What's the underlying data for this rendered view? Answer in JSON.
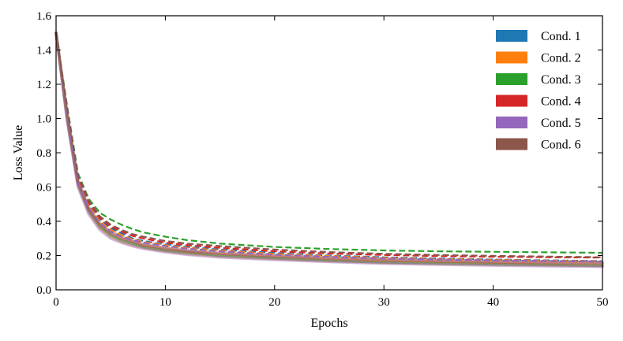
{
  "chart_data": {
    "type": "line",
    "title": "",
    "xlabel": "Epochs",
    "ylabel": "Loss Value",
    "xlim": [
      0,
      50
    ],
    "ylim": [
      0.0,
      1.6
    ],
    "xticks": [
      0,
      10,
      20,
      30,
      40,
      50
    ],
    "yticks": [
      0.0,
      0.2,
      0.4,
      0.6,
      0.8,
      1.0,
      1.2,
      1.4,
      1.6
    ],
    "xtick_labels": [
      "0",
      "10",
      "20",
      "30",
      "40",
      "50"
    ],
    "ytick_labels": [
      "0.0",
      "0.2",
      "0.4",
      "0.6",
      "0.8",
      "1.0",
      "1.2",
      "1.4",
      "1.6"
    ],
    "grid": false,
    "legend_position": "top-right",
    "x": [
      0,
      1,
      2,
      3,
      4,
      5,
      6,
      7,
      8,
      10,
      12,
      15,
      20,
      25,
      30,
      35,
      40,
      45,
      50
    ],
    "series": [
      {
        "name": "Cond. 1",
        "color": "#1f77b4",
        "solid": [
          1.5,
          1.02,
          0.62,
          0.46,
          0.37,
          0.32,
          0.29,
          0.27,
          0.25,
          0.23,
          0.22,
          0.2,
          0.185,
          0.17,
          0.16,
          0.155,
          0.15,
          0.145,
          0.14
        ],
        "dashed": [
          1.5,
          1.05,
          0.65,
          0.5,
          0.41,
          0.36,
          0.33,
          0.3,
          0.285,
          0.265,
          0.25,
          0.235,
          0.215,
          0.2,
          0.19,
          0.183,
          0.177,
          0.172,
          0.168
        ]
      },
      {
        "name": "Cond. 2",
        "color": "#ff7f0e",
        "solid": [
          1.5,
          1.0,
          0.61,
          0.45,
          0.36,
          0.31,
          0.28,
          0.26,
          0.245,
          0.225,
          0.21,
          0.195,
          0.18,
          0.168,
          0.158,
          0.152,
          0.147,
          0.143,
          0.14
        ],
        "dashed": [
          1.5,
          1.04,
          0.64,
          0.49,
          0.4,
          0.35,
          0.32,
          0.295,
          0.28,
          0.26,
          0.245,
          0.23,
          0.21,
          0.197,
          0.187,
          0.18,
          0.175,
          0.17,
          0.167
        ]
      },
      {
        "name": "Cond. 3",
        "color": "#2ca02c",
        "solid": [
          1.5,
          1.01,
          0.62,
          0.46,
          0.37,
          0.32,
          0.29,
          0.27,
          0.25,
          0.23,
          0.215,
          0.2,
          0.185,
          0.172,
          0.162,
          0.156,
          0.151,
          0.147,
          0.144
        ],
        "dashed": [
          1.5,
          1.08,
          0.68,
          0.53,
          0.45,
          0.41,
          0.38,
          0.355,
          0.335,
          0.31,
          0.29,
          0.27,
          0.25,
          0.238,
          0.23,
          0.225,
          0.222,
          0.219,
          0.216
        ]
      },
      {
        "name": "Cond. 4",
        "color": "#d62728",
        "solid": [
          1.5,
          1.03,
          0.63,
          0.47,
          0.38,
          0.33,
          0.3,
          0.28,
          0.26,
          0.24,
          0.225,
          0.21,
          0.195,
          0.182,
          0.172,
          0.166,
          0.161,
          0.157,
          0.154
        ],
        "dashed": [
          1.5,
          1.06,
          0.66,
          0.51,
          0.42,
          0.37,
          0.34,
          0.315,
          0.3,
          0.275,
          0.26,
          0.245,
          0.225,
          0.212,
          0.203,
          0.197,
          0.193,
          0.19,
          0.188
        ]
      },
      {
        "name": "Cond. 5",
        "color": "#9467bd",
        "solid": [
          1.5,
          0.99,
          0.6,
          0.44,
          0.35,
          0.3,
          0.275,
          0.255,
          0.24,
          0.22,
          0.205,
          0.19,
          0.175,
          0.163,
          0.153,
          0.147,
          0.142,
          0.138,
          0.135
        ],
        "dashed": [
          1.5,
          1.03,
          0.63,
          0.48,
          0.39,
          0.34,
          0.31,
          0.29,
          0.275,
          0.255,
          0.24,
          0.225,
          0.205,
          0.192,
          0.183,
          0.177,
          0.172,
          0.168,
          0.165
        ]
      },
      {
        "name": "Cond. 6",
        "color": "#8c564b",
        "solid": [
          1.5,
          1.04,
          0.64,
          0.48,
          0.39,
          0.34,
          0.31,
          0.285,
          0.265,
          0.245,
          0.23,
          0.215,
          0.2,
          0.187,
          0.177,
          0.171,
          0.166,
          0.162,
          0.159
        ],
        "dashed": [
          1.5,
          1.07,
          0.67,
          0.52,
          0.43,
          0.38,
          0.35,
          0.325,
          0.31,
          0.285,
          0.27,
          0.255,
          0.235,
          0.22,
          0.21,
          0.203,
          0.198,
          0.194,
          0.19
        ]
      }
    ]
  }
}
